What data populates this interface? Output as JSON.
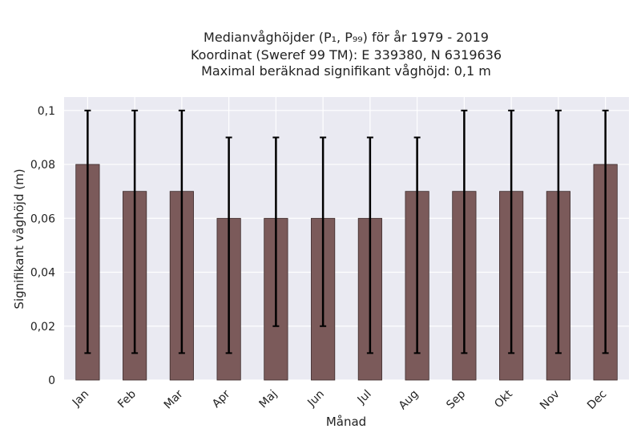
{
  "chart_data": {
    "type": "bar",
    "title_lines": [
      "Medianvåghöjder (P₁, P₉₉) för år 1979 - 2019",
      "Koordinat (Sweref 99 TM): E 339380, N 6319636",
      "Maximal beräknad signifikant våghöjd: 0,1 m"
    ],
    "xlabel": "Månad",
    "ylabel": "Signifikant våghöjd (m)",
    "categories": [
      "Jan",
      "Feb",
      "Mar",
      "Apr",
      "Maj",
      "Jun",
      "Jul",
      "Aug",
      "Sep",
      "Okt",
      "Nov",
      "Dec"
    ],
    "values": [
      0.08,
      0.07,
      0.07,
      0.06,
      0.06,
      0.06,
      0.06,
      0.07,
      0.07,
      0.07,
      0.07,
      0.08
    ],
    "err_low": [
      0.01,
      0.01,
      0.01,
      0.01,
      0.02,
      0.02,
      0.01,
      0.01,
      0.01,
      0.01,
      0.01,
      0.01
    ],
    "err_high": [
      0.1,
      0.1,
      0.1,
      0.09,
      0.09,
      0.09,
      0.09,
      0.09,
      0.1,
      0.1,
      0.1,
      0.1
    ],
    "ylim": [
      0,
      0.105
    ],
    "yticks": [
      0,
      0.02,
      0.04,
      0.06,
      0.08,
      0.1
    ],
    "ytick_labels": [
      "0",
      "0,02",
      "0,04",
      "0,06",
      "0,08",
      "0,1"
    ],
    "grid": true,
    "colors": {
      "bar": "#7b5a5a",
      "bar_edge": "#3c2c2c",
      "error": "#000000",
      "plot_bg": "#eaeaf2",
      "grid": "#ffffff"
    }
  }
}
